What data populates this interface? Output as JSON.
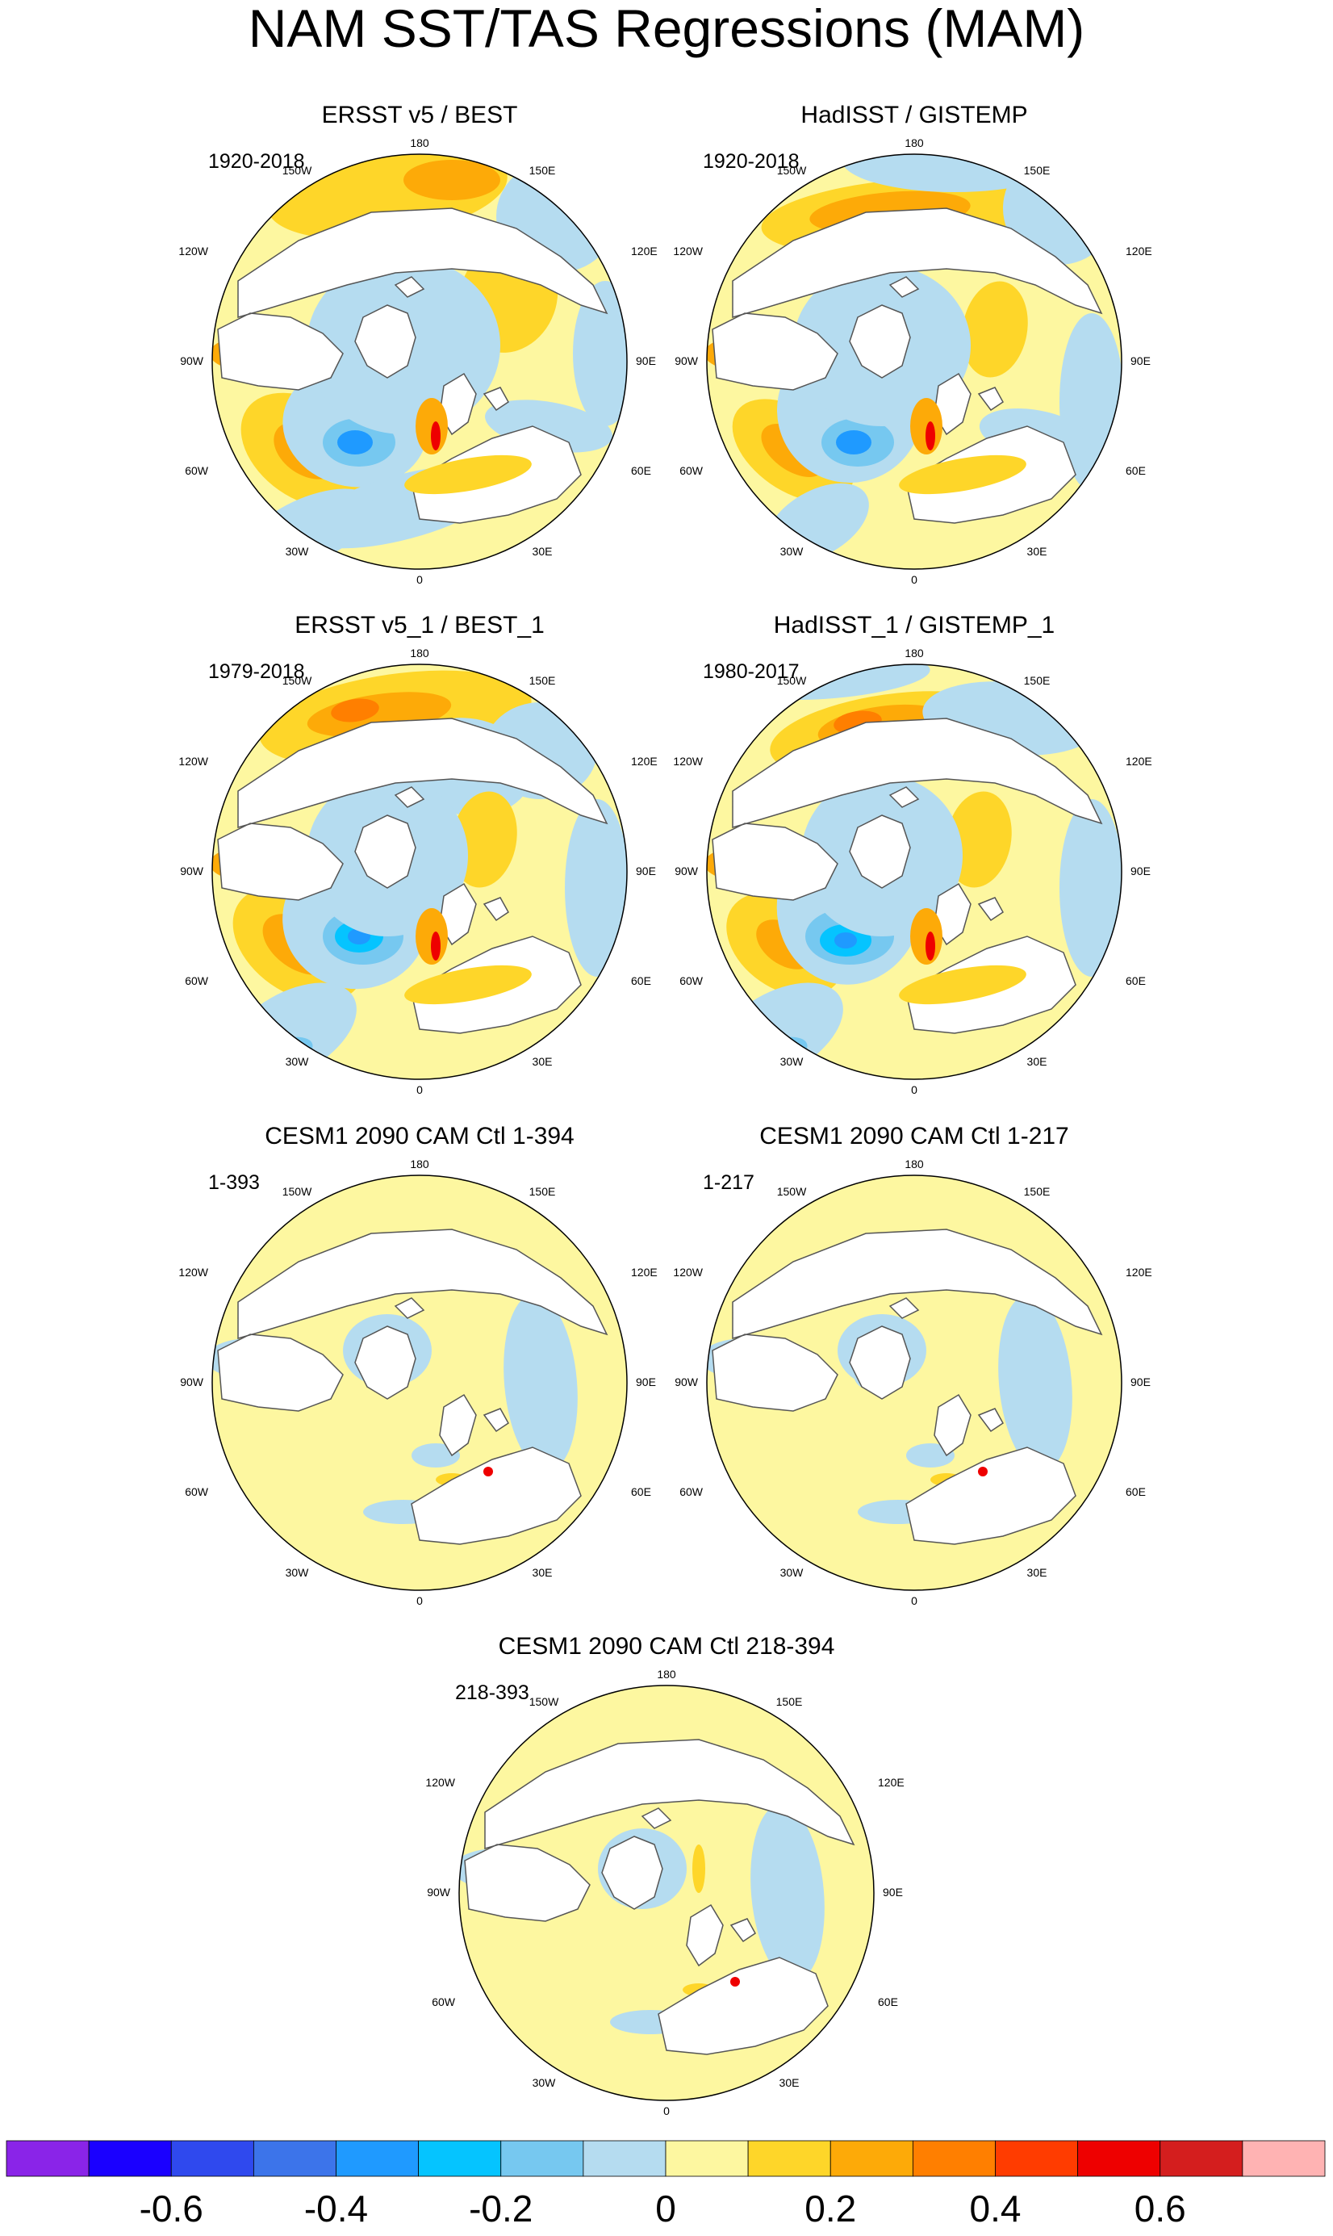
{
  "figure": {
    "title": "NAM SST/TAS Regressions (MAM)",
    "longitude_labels": {
      "top": "180",
      "top_left": "150W",
      "top_right": "150E",
      "upper_left": "120W",
      "upper_right": "120E",
      "left": "90W",
      "right": "90E",
      "lower_left": "60W",
      "lower_right": "60E",
      "bottom_left": "30W",
      "bottom_right": "30E",
      "bottom": "0"
    }
  },
  "panels": [
    {
      "id": "p1",
      "title": "ERSST v5 / BEST",
      "period": "1920-2018"
    },
    {
      "id": "p2",
      "title": "HadISST / GISTEMP",
      "period": "1920-2018"
    },
    {
      "id": "p3",
      "title": "ERSST v5_1 / BEST_1",
      "period": "1979-2018"
    },
    {
      "id": "p4",
      "title": "HadISST_1 / GISTEMP_1",
      "period": "1980-2017"
    },
    {
      "id": "p5",
      "title": "CESM1 2090 CAM Ctl 1-394",
      "period": "1-393"
    },
    {
      "id": "p6",
      "title": "CESM1 2090 CAM Ctl 1-217",
      "period": "1-217"
    },
    {
      "id": "p7",
      "title": "CESM1 2090 CAM Ctl 218-394",
      "period": "218-393"
    }
  ],
  "colors": {
    "c_neg07": "#8a24e8",
    "c_neg06": "#1a00ff",
    "c_neg05": "#2f49ee",
    "c_neg04": "#3c74ea",
    "c_neg03": "#1f9aff",
    "c_neg02": "#05c4ff",
    "c_neg01": "#76c8f0",
    "c_neg00": "#b5dcf0",
    "c_pos00": "#fdf7a0",
    "c_pos01": "#fed629",
    "c_pos02": "#fdaa08",
    "c_pos03": "#ff7f00",
    "c_pos04": "#ff3c00",
    "c_pos05": "#ee0000",
    "c_pos06": "#d41e1e",
    "c_pos07": "#ffb3b3",
    "land": "#ffffff",
    "coast": "#555555"
  },
  "chart_data": {
    "type": "heatmap",
    "projection": "north polar stereographic",
    "variable": "NAM SST/TAS regression",
    "season": "MAM",
    "colorbar": {
      "boundaries": [
        -0.7,
        -0.6,
        -0.5,
        -0.4,
        -0.3,
        -0.2,
        -0.1,
        0,
        0.1,
        0.2,
        0.3,
        0.4,
        0.5,
        0.6,
        0.7
      ],
      "tick_labels": [
        "-0.6",
        "-0.4",
        "-0.2",
        "0",
        "0.2",
        "0.4",
        "0.6"
      ],
      "tick_values": [
        -0.6,
        -0.4,
        -0.2,
        0,
        0.2,
        0.4,
        0.6
      ],
      "colors": [
        "#8a24e8",
        "#1a00ff",
        "#2f49ee",
        "#3c74ea",
        "#1f9aff",
        "#05c4ff",
        "#76c8f0",
        "#b5dcf0",
        "#fdf7a0",
        "#fed629",
        "#fdaa08",
        "#ff7f00",
        "#ff3c00",
        "#ee0000",
        "#d41e1e",
        "#ffb3b3"
      ]
    },
    "panels": [
      "ERSST v5 / BEST",
      "HadISST / GISTEMP",
      "ERSST v5_1 / BEST_1",
      "HadISST_1 / GISTEMP_1",
      "CESM1 2090 CAM Ctl 1-394",
      "CESM1 2090 CAM Ctl 1-217",
      "CESM1 2090 CAM Ctl 218-394"
    ],
    "periods": [
      "1920-2018",
      "1920-2018",
      "1979-2018",
      "1980-2017",
      "1-393",
      "1-217",
      "218-393"
    ]
  }
}
